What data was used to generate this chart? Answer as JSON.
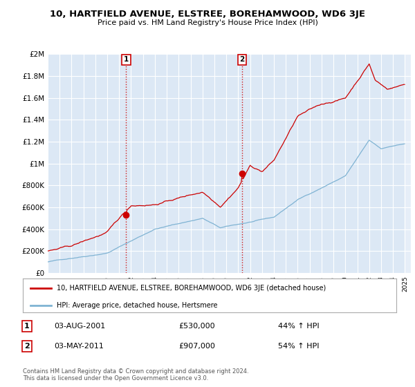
{
  "title": "10, HARTFIELD AVENUE, ELSTREE, BOREHAMWOOD, WD6 3JE",
  "subtitle": "Price paid vs. HM Land Registry's House Price Index (HPI)",
  "ylim": [
    0,
    2000000
  ],
  "yticks": [
    0,
    200000,
    400000,
    600000,
    800000,
    1000000,
    1200000,
    1400000,
    1600000,
    1800000,
    2000000
  ],
  "ytick_labels": [
    "£0",
    "£200K",
    "£400K",
    "£600K",
    "£800K",
    "£1M",
    "£1.2M",
    "£1.4M",
    "£1.6M",
    "£1.8M",
    "£2M"
  ],
  "background_color": "#ffffff",
  "plot_bg_color": "#dce8f5",
  "grid_color": "#ffffff",
  "legend_label_red": "10, HARTFIELD AVENUE, ELSTREE, BOREHAMWOOD, WD6 3JE (detached house)",
  "legend_label_blue": "HPI: Average price, detached house, Hertsmere",
  "sale1_date": "03-AUG-2001",
  "sale1_price": "£530,000",
  "sale1_hpi": "44% ↑ HPI",
  "sale1_year": 2001.583,
  "sale1_value": 530000,
  "sale2_date": "03-MAY-2011",
  "sale2_price": "£907,000",
  "sale2_hpi": "54% ↑ HPI",
  "sale2_year": 2011.333,
  "sale2_value": 907000,
  "footer1": "Contains HM Land Registry data © Crown copyright and database right 2024.",
  "footer2": "This data is licensed under the Open Government Licence v3.0.",
  "red_color": "#cc0000",
  "blue_color": "#7fb3d3",
  "shade_color": "#dce8f5",
  "outside_shade_color": "#f0f0f0",
  "title_fontsize": 9.5,
  "subtitle_fontsize": 8,
  "axis_fontsize": 7.5,
  "xtick_fontsize": 6.5,
  "legend_fontsize": 7,
  "table_fontsize": 8,
  "footer_fontsize": 6
}
